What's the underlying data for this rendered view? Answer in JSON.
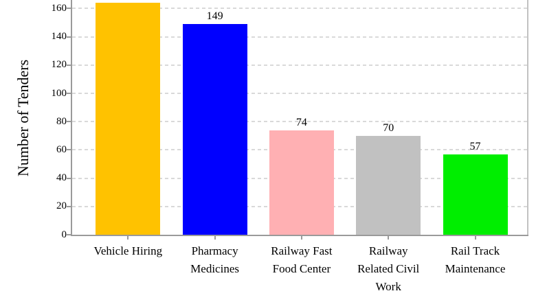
{
  "chart_data": {
    "type": "bar",
    "title": "",
    "xlabel": "",
    "ylabel": "Number of Tenders",
    "categories": [
      "Vehicle Hiring",
      "Pharmacy Medicines",
      "Railway Fast Food Center",
      "Railway Related Civil Work",
      "Rail Track Maintenance"
    ],
    "category_label_lines": [
      [
        "Vehicle Hiring"
      ],
      [
        "Pharmacy",
        "Medicines"
      ],
      [
        "Railway Fast",
        "Food Center"
      ],
      [
        "Railway",
        "Related Civil",
        "Work"
      ],
      [
        "Rail Track",
        "Maintenance"
      ]
    ],
    "values": [
      164,
      149,
      74,
      70,
      57
    ],
    "value_labels": [
      "164",
      "149",
      "74",
      "70",
      "57"
    ],
    "bar_colors": [
      "#FFC200",
      "#0000FF",
      "#FFB0B3",
      "#C1C1C1",
      "#00EE00"
    ],
    "yticks": [
      0,
      20,
      40,
      60,
      80,
      100,
      120,
      140,
      160
    ],
    "ylim": [
      0,
      172
    ],
    "grid": "horizontal-dashed",
    "legend": "none"
  },
  "style_colors": {
    "axis_spine": "#9a9a9a",
    "right_spine": "#c2c2c2",
    "gridline": "#d9d9d9",
    "text": "#000000",
    "background": "#ffffff"
  }
}
